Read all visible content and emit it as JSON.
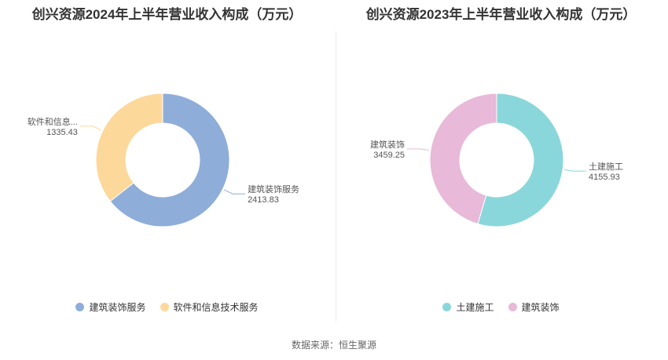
{
  "chart_data": [
    {
      "type": "pie",
      "donut": true,
      "title": "创兴资源2024年上半年营业收入构成（万元）",
      "categories": [
        "建筑装饰服务",
        "软件和信息技术服务"
      ],
      "labels_short": [
        "建筑装饰服务",
        "软件和信息..."
      ],
      "values": [
        2413.83,
        1335.43
      ],
      "value_labels": [
        "2413.83",
        "1335.43"
      ],
      "colors": [
        "#8eadd9",
        "#fdd89b"
      ],
      "legend": "bottom"
    },
    {
      "type": "pie",
      "donut": true,
      "title": "创兴资源2023年上半年营业收入构成（万元）",
      "categories": [
        "土建施工",
        "建筑装饰"
      ],
      "labels_short": [
        "土建施工",
        "建筑装饰"
      ],
      "values": [
        4155.93,
        3459.25
      ],
      "value_labels": [
        "4155.93",
        "3459.25"
      ],
      "colors": [
        "#89d7da",
        "#e8b9d8"
      ],
      "legend": "bottom"
    }
  ],
  "source": "数据来源：恒生聚源"
}
